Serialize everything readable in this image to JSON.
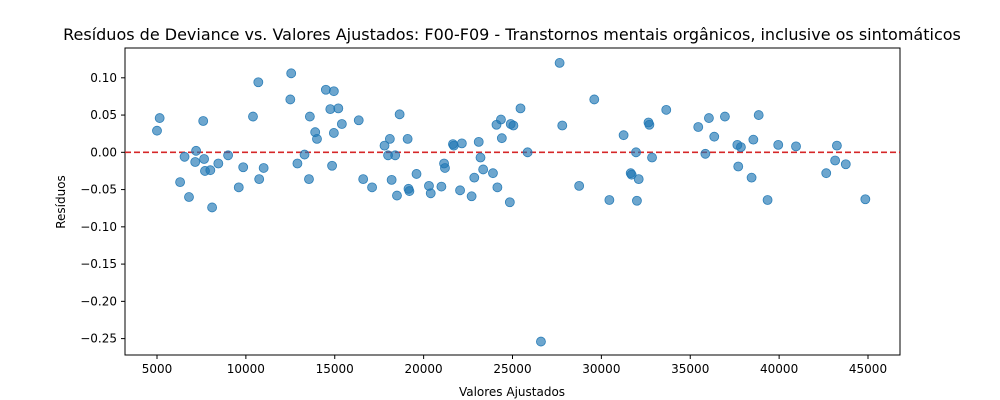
{
  "chart_data": {
    "type": "scatter",
    "title": "Resíduos de Deviance vs. Valores Ajustados: F00-F09 - Transtornos mentais orgânicos, inclusive os sintomáticos",
    "xlabel": "Valores Ajustados",
    "ylabel": "Resíduos",
    "xlim": [
      3200,
      46800
    ],
    "ylim": [
      -0.272,
      0.14
    ],
    "x_ticks": [
      5000,
      10000,
      15000,
      20000,
      25000,
      30000,
      35000,
      40000,
      45000
    ],
    "x_tick_labels": [
      "5000",
      "10000",
      "15000",
      "20000",
      "25000",
      "30000",
      "35000",
      "40000",
      "45000"
    ],
    "y_ticks": [
      0.1,
      0.05,
      0.0,
      -0.05,
      -0.1,
      -0.15,
      -0.2,
      -0.25
    ],
    "y_tick_labels": [
      "0.10",
      "0.05",
      "0.00",
      "−0.05",
      "−0.10",
      "−0.15",
      "−0.20",
      "−0.25"
    ],
    "reference_line": {
      "y": 0.0,
      "color": "#d62728",
      "style": "dashed"
    },
    "point_color": "#1f77b4",
    "point_alpha": 0.65,
    "grid": false,
    "points": [
      {
        "x": 5000,
        "y": 0.029
      },
      {
        "x": 5150,
        "y": 0.046
      },
      {
        "x": 6300,
        "y": -0.04
      },
      {
        "x": 6550,
        "y": -0.006
      },
      {
        "x": 6800,
        "y": -0.06
      },
      {
        "x": 7150,
        "y": -0.013
      },
      {
        "x": 7200,
        "y": 0.002
      },
      {
        "x": 7600,
        "y": 0.042
      },
      {
        "x": 7650,
        "y": -0.009
      },
      {
        "x": 7700,
        "y": -0.025
      },
      {
        "x": 8000,
        "y": -0.024
      },
      {
        "x": 8100,
        "y": -0.074
      },
      {
        "x": 8450,
        "y": -0.015
      },
      {
        "x": 9000,
        "y": -0.004
      },
      {
        "x": 9600,
        "y": -0.047
      },
      {
        "x": 9850,
        "y": -0.02
      },
      {
        "x": 10400,
        "y": 0.048
      },
      {
        "x": 10700,
        "y": 0.094
      },
      {
        "x": 10750,
        "y": -0.036
      },
      {
        "x": 11000,
        "y": -0.021
      },
      {
        "x": 12500,
        "y": 0.071
      },
      {
        "x": 12550,
        "y": 0.106
      },
      {
        "x": 12900,
        "y": -0.015
      },
      {
        "x": 13300,
        "y": -0.003
      },
      {
        "x": 13550,
        "y": -0.036
      },
      {
        "x": 13600,
        "y": 0.048
      },
      {
        "x": 13900,
        "y": 0.027
      },
      {
        "x": 14000,
        "y": 0.018
      },
      {
        "x": 14500,
        "y": 0.084
      },
      {
        "x": 14750,
        "y": 0.058
      },
      {
        "x": 14850,
        "y": -0.018
      },
      {
        "x": 14950,
        "y": 0.082
      },
      {
        "x": 14950,
        "y": 0.026
      },
      {
        "x": 15200,
        "y": 0.059
      },
      {
        "x": 15400,
        "y": 0.038
      },
      {
        "x": 16350,
        "y": 0.043
      },
      {
        "x": 16600,
        "y": -0.036
      },
      {
        "x": 17100,
        "y": -0.047
      },
      {
        "x": 17800,
        "y": 0.009
      },
      {
        "x": 18000,
        "y": -0.004
      },
      {
        "x": 18100,
        "y": 0.018
      },
      {
        "x": 18200,
        "y": -0.037
      },
      {
        "x": 18400,
        "y": -0.004
      },
      {
        "x": 18500,
        "y": -0.058
      },
      {
        "x": 18650,
        "y": 0.051
      },
      {
        "x": 19100,
        "y": 0.018
      },
      {
        "x": 19150,
        "y": -0.049
      },
      {
        "x": 19200,
        "y": -0.052
      },
      {
        "x": 19600,
        "y": -0.029
      },
      {
        "x": 20300,
        "y": -0.045
      },
      {
        "x": 20400,
        "y": -0.055
      },
      {
        "x": 21000,
        "y": -0.046
      },
      {
        "x": 21150,
        "y": -0.015
      },
      {
        "x": 21200,
        "y": -0.021
      },
      {
        "x": 21650,
        "y": 0.011
      },
      {
        "x": 21700,
        "y": 0.009
      },
      {
        "x": 22050,
        "y": -0.051
      },
      {
        "x": 22150,
        "y": 0.012
      },
      {
        "x": 22700,
        "y": -0.059
      },
      {
        "x": 22850,
        "y": -0.034
      },
      {
        "x": 23100,
        "y": 0.014
      },
      {
        "x": 23200,
        "y": -0.007
      },
      {
        "x": 23350,
        "y": -0.023
      },
      {
        "x": 23900,
        "y": -0.028
      },
      {
        "x": 24100,
        "y": 0.037
      },
      {
        "x": 24150,
        "y": -0.047
      },
      {
        "x": 24350,
        "y": 0.044
      },
      {
        "x": 24400,
        "y": 0.019
      },
      {
        "x": 24850,
        "y": -0.067
      },
      {
        "x": 24900,
        "y": 0.038
      },
      {
        "x": 25050,
        "y": 0.036
      },
      {
        "x": 25450,
        "y": 0.059
      },
      {
        "x": 25850,
        "y": 0.0
      },
      {
        "x": 26600,
        "y": -0.254
      },
      {
        "x": 27650,
        "y": 0.12
      },
      {
        "x": 27800,
        "y": 0.036
      },
      {
        "x": 28750,
        "y": -0.045
      },
      {
        "x": 29600,
        "y": 0.071
      },
      {
        "x": 30450,
        "y": -0.064
      },
      {
        "x": 31250,
        "y": 0.023
      },
      {
        "x": 31650,
        "y": -0.028
      },
      {
        "x": 31700,
        "y": -0.03
      },
      {
        "x": 31950,
        "y": 0.0
      },
      {
        "x": 32000,
        "y": -0.065
      },
      {
        "x": 32100,
        "y": -0.036
      },
      {
        "x": 32650,
        "y": 0.04
      },
      {
        "x": 32700,
        "y": 0.037
      },
      {
        "x": 32850,
        "y": -0.007
      },
      {
        "x": 33650,
        "y": 0.057
      },
      {
        "x": 35450,
        "y": 0.034
      },
      {
        "x": 35850,
        "y": -0.002
      },
      {
        "x": 36050,
        "y": 0.046
      },
      {
        "x": 36350,
        "y": 0.021
      },
      {
        "x": 36950,
        "y": 0.048
      },
      {
        "x": 37650,
        "y": 0.01
      },
      {
        "x": 37700,
        "y": -0.019
      },
      {
        "x": 37850,
        "y": 0.007
      },
      {
        "x": 38450,
        "y": -0.034
      },
      {
        "x": 38550,
        "y": 0.017
      },
      {
        "x": 38850,
        "y": 0.05
      },
      {
        "x": 39350,
        "y": -0.064
      },
      {
        "x": 39950,
        "y": 0.01
      },
      {
        "x": 40950,
        "y": 0.008
      },
      {
        "x": 42650,
        "y": -0.028
      },
      {
        "x": 43150,
        "y": -0.011
      },
      {
        "x": 43250,
        "y": 0.009
      },
      {
        "x": 43750,
        "y": -0.016
      },
      {
        "x": 44850,
        "y": -0.063
      }
    ]
  }
}
